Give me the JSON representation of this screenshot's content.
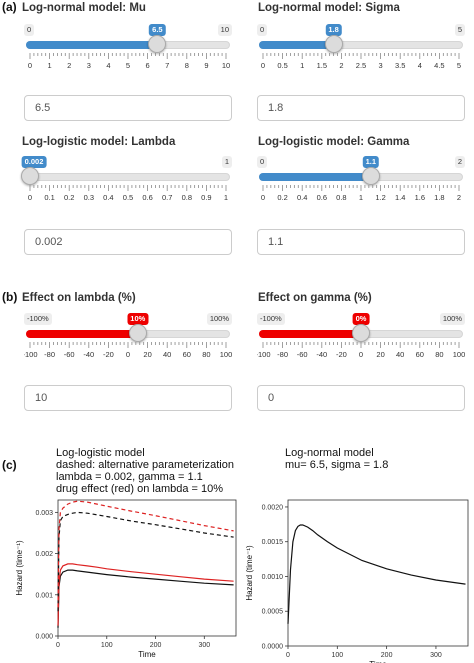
{
  "panel_a": {
    "letter": "(a)",
    "mu": {
      "label": "Log-normal model: Mu",
      "min_label": "0",
      "max_label": "10",
      "value_label": "6.5",
      "fraction": 0.65,
      "ticks": [
        "0",
        "1",
        "2",
        "3",
        "4",
        "5",
        "6",
        "7",
        "8",
        "9",
        "10"
      ],
      "input_value": "6.5"
    },
    "sigma": {
      "label": "Log-normal model: Sigma",
      "min_label": "0",
      "max_label": "5",
      "value_label": "1.8",
      "fraction": 0.36,
      "ticks": [
        "0",
        "0.5",
        "1",
        "1.5",
        "2",
        "2.5",
        "3",
        "3.5",
        "4",
        "4.5",
        "5"
      ],
      "input_value": "1.8"
    },
    "lambda": {
      "label": "Log-logistic model: Lambda",
      "min_label": "0",
      "max_label": "1",
      "value_label": "0.002",
      "fraction": 0.002,
      "ticks": [
        "0",
        "0.1",
        "0.2",
        "0.3",
        "0.4",
        "0.5",
        "0.6",
        "0.7",
        "0.8",
        "0.9",
        "1"
      ],
      "input_value": "0.002"
    },
    "gamma": {
      "label": "Log-logistic model: Gamma",
      "min_label": "0",
      "max_label": "2",
      "value_label": "1.1",
      "fraction": 0.55,
      "ticks": [
        "0",
        "0.2",
        "0.4",
        "0.6",
        "0.8",
        "1",
        "1.2",
        "1.4",
        "1.6",
        "1.8",
        "2"
      ],
      "input_value": "1.1"
    }
  },
  "panel_b": {
    "letter": "(b)",
    "effect_lambda": {
      "label": "Effect on lambda (%)",
      "min_label": "-100%",
      "max_label": "100%",
      "value_label": "10%",
      "fraction": 0.55,
      "ticks": [
        "-100",
        "-80",
        "-60",
        "-40",
        "-20",
        "0",
        "20",
        "40",
        "60",
        "80",
        "100"
      ],
      "input_value": "10"
    },
    "effect_gamma": {
      "label": "Effect on gamma (%)",
      "min_label": "-100%",
      "max_label": "100%",
      "value_label": "0%",
      "fraction": 0.5,
      "ticks": [
        "-100",
        "-80",
        "-60",
        "-40",
        "-20",
        "0",
        "20",
        "40",
        "60",
        "80",
        "100"
      ],
      "input_value": "0"
    }
  },
  "colors": {
    "blue_fill": "#428bca",
    "red_fill": "#ee0000",
    "track": "#e4e4e4"
  },
  "panel_c": {
    "letter": "(c)",
    "chart_data": [
      {
        "type": "line",
        "title": "Log-logistic model\ndashed: alternative parameterization\nlambda = 0.002, gamma = 1.1\ndrug effect (red) on lambda = 10%",
        "title_lines": [
          "Log-logistic model",
          "dashed: alternative parameterization",
          "lambda = 0.002, gamma = 1.1",
          "drug effect (red) on lambda = 10%"
        ],
        "xlabel": "Time",
        "ylabel": "Hazard  (time⁻¹)",
        "xlim": [
          0,
          365
        ],
        "ylim": [
          0,
          0.0033
        ],
        "xticks": [
          0,
          100,
          200,
          300
        ],
        "yticks": [
          0.0,
          0.001,
          0.002,
          0.003
        ],
        "ytick_labels": [
          "0.000",
          "0.001",
          "0.002",
          "0.003"
        ],
        "series": [
          {
            "style": "solid",
            "color": "#111111",
            "x": [
              0,
              2,
              5,
              10,
              20,
              30,
              40,
              60,
              80,
              100,
              150,
              200,
              250,
              300,
              360
            ],
            "y": [
              0.0002,
              0.0012,
              0.00145,
              0.00155,
              0.0016,
              0.0016,
              0.00158,
              0.00155,
              0.00152,
              0.00149,
              0.00143,
              0.00138,
              0.00133,
              0.00128,
              0.00124
            ]
          },
          {
            "style": "solid",
            "color": "#dd2222",
            "x": [
              0,
              2,
              5,
              10,
              20,
              30,
              40,
              60,
              80,
              100,
              150,
              200,
              250,
              300,
              360
            ],
            "y": [
              0.00025,
              0.0013,
              0.0016,
              0.0017,
              0.00175,
              0.00175,
              0.00173,
              0.0017,
              0.00167,
              0.00163,
              0.00156,
              0.0015,
              0.00144,
              0.00138,
              0.00133
            ]
          },
          {
            "style": "dashed",
            "color": "#111111",
            "x": [
              0,
              2,
              5,
              10,
              20,
              30,
              40,
              60,
              80,
              100,
              150,
              200,
              250,
              300,
              360
            ],
            "y": [
              0.0006,
              0.0024,
              0.0028,
              0.0029,
              0.00295,
              0.00298,
              0.003,
              0.00298,
              0.00294,
              0.0029,
              0.00279,
              0.0027,
              0.0026,
              0.0025,
              0.0024
            ]
          },
          {
            "style": "dashed",
            "color": "#dd2222",
            "x": [
              0,
              2,
              5,
              10,
              20,
              30,
              40,
              60,
              80,
              100,
              150,
              200,
              250,
              300,
              360
            ],
            "y": [
              0.0007,
              0.0026,
              0.003,
              0.0031,
              0.0032,
              0.00325,
              0.00327,
              0.00325,
              0.0032,
              0.00315,
              0.00303,
              0.00292,
              0.0028,
              0.00268,
              0.00255
            ]
          }
        ]
      },
      {
        "type": "line",
        "title": "Log-normal model\nmu= 6.5, sigma = 1.8",
        "title_lines": [
          "Log-normal model",
          "mu= 6.5, sigma = 1.8"
        ],
        "xlabel": "Time",
        "ylabel": "Hazard  (time⁻¹)",
        "xlim": [
          0,
          365
        ],
        "ylim": [
          0,
          0.0021
        ],
        "xticks": [
          0,
          100,
          200,
          300
        ],
        "yticks": [
          0.0,
          0.0005,
          0.001,
          0.0015,
          0.002
        ],
        "ytick_labels": [
          "0.0000",
          "0.0005",
          "0.0010",
          "0.0015",
          "0.0020"
        ],
        "series": [
          {
            "style": "solid",
            "color": "#111111",
            "x": [
              0,
              5,
              10,
              15,
              20,
              25,
              30,
              40,
              50,
              60,
              80,
              100,
              150,
              200,
              250,
              300,
              360
            ],
            "y": [
              0.00032,
              0.0011,
              0.0015,
              0.00166,
              0.00172,
              0.00174,
              0.00174,
              0.00171,
              0.00166,
              0.0016,
              0.0015,
              0.00141,
              0.00123,
              0.00111,
              0.00102,
              0.00095,
              0.00089
            ]
          }
        ]
      }
    ]
  }
}
